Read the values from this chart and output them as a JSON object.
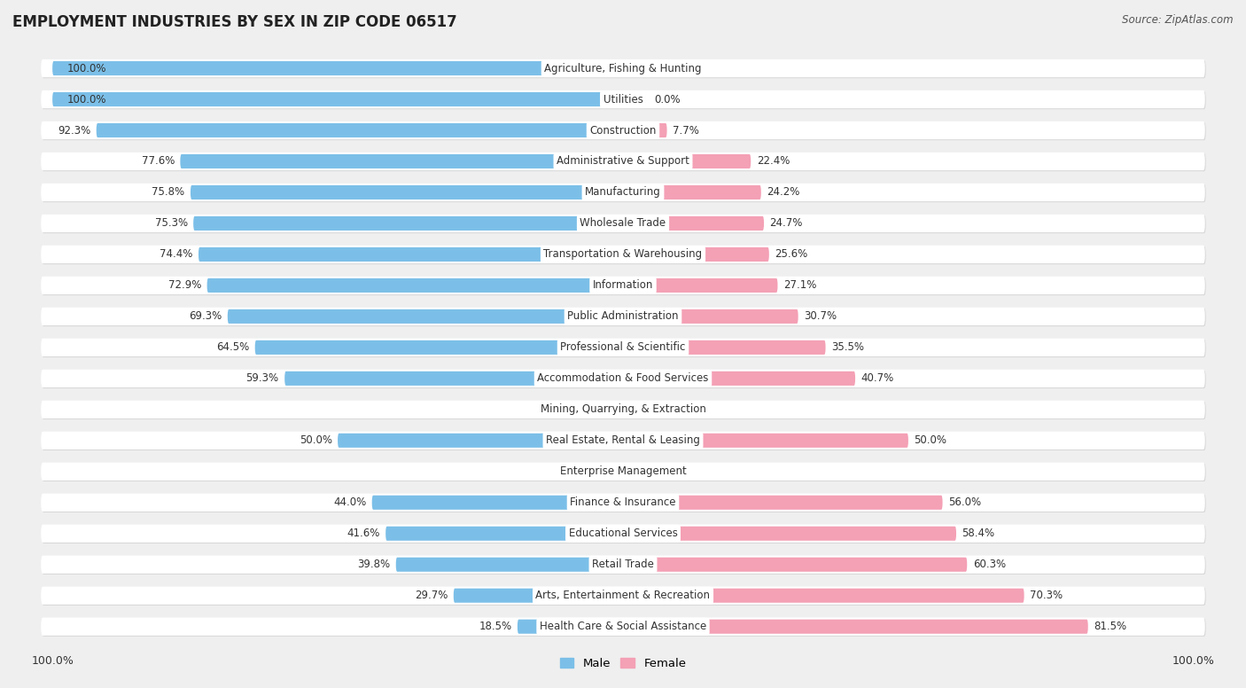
{
  "title": "EMPLOYMENT INDUSTRIES BY SEX IN ZIP CODE 06517",
  "source": "Source: ZipAtlas.com",
  "male_color": "#7bbfe8",
  "female_color": "#f4a0b5",
  "bg_color": "#efefef",
  "row_bg_color": "#ffffff",
  "row_shadow_color": "#d8d8d8",
  "categories": [
    "Agriculture, Fishing & Hunting",
    "Utilities",
    "Construction",
    "Administrative & Support",
    "Manufacturing",
    "Wholesale Trade",
    "Transportation & Warehousing",
    "Information",
    "Public Administration",
    "Professional & Scientific",
    "Accommodation & Food Services",
    "Mining, Quarrying, & Extraction",
    "Real Estate, Rental & Leasing",
    "Enterprise Management",
    "Finance & Insurance",
    "Educational Services",
    "Retail Trade",
    "Arts, Entertainment & Recreation",
    "Health Care & Social Assistance"
  ],
  "male_pct": [
    100.0,
    100.0,
    92.3,
    77.6,
    75.8,
    75.3,
    74.4,
    72.9,
    69.3,
    64.5,
    59.3,
    0.0,
    50.0,
    0.0,
    44.0,
    41.6,
    39.8,
    29.7,
    18.5
  ],
  "female_pct": [
    0.0,
    0.0,
    7.7,
    22.4,
    24.2,
    24.7,
    25.6,
    27.1,
    30.7,
    35.5,
    40.7,
    0.0,
    50.0,
    0.0,
    56.0,
    58.4,
    60.3,
    70.3,
    81.5
  ],
  "label_fontsize": 8.5,
  "cat_fontsize": 8.5,
  "title_fontsize": 12,
  "source_fontsize": 8.5
}
